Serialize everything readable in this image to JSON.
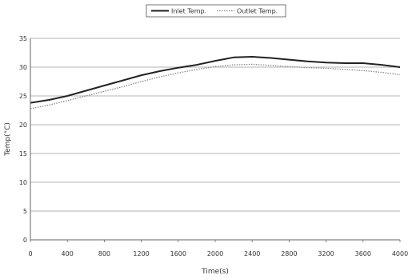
{
  "chart_data": {
    "type": "line",
    "xlabel": "Time(s)",
    "ylabel": "Temp(°C)",
    "xlim": [
      0,
      4000
    ],
    "ylim": [
      0,
      35
    ],
    "x_ticks": [
      0,
      400,
      800,
      1200,
      1600,
      2000,
      2400,
      2800,
      3200,
      3600,
      4000
    ],
    "y_ticks": [
      0,
      5,
      10,
      15,
      20,
      25,
      30,
      35
    ],
    "grid": "horizontal",
    "legend_position": "top-center",
    "series": [
      {
        "name": "Inlet Temp.",
        "color": "#222222",
        "style": "solid",
        "x": [
          0,
          200,
          400,
          600,
          800,
          1000,
          1200,
          1400,
          1600,
          1800,
          2000,
          2200,
          2400,
          2600,
          2800,
          3000,
          3200,
          3400,
          3600,
          3800,
          4000
        ],
        "y": [
          23.8,
          24.3,
          25.0,
          25.9,
          26.8,
          27.7,
          28.6,
          29.3,
          29.9,
          30.4,
          31.1,
          31.7,
          31.8,
          31.6,
          31.3,
          31.0,
          30.8,
          30.7,
          30.7,
          30.4,
          30.0
        ]
      },
      {
        "name": "Outlet Temp.",
        "color": "#888888",
        "style": "dotted",
        "x": [
          0,
          200,
          400,
          600,
          800,
          1000,
          1200,
          1400,
          1600,
          1800,
          2000,
          2200,
          2400,
          2600,
          2800,
          3000,
          3200,
          3400,
          3600,
          3800,
          4000
        ],
        "y": [
          22.8,
          23.4,
          24.2,
          25.0,
          25.8,
          26.6,
          27.5,
          28.3,
          29.0,
          29.6,
          30.1,
          30.4,
          30.5,
          30.3,
          30.1,
          29.9,
          29.8,
          29.6,
          29.4,
          29.1,
          28.7
        ]
      }
    ]
  }
}
